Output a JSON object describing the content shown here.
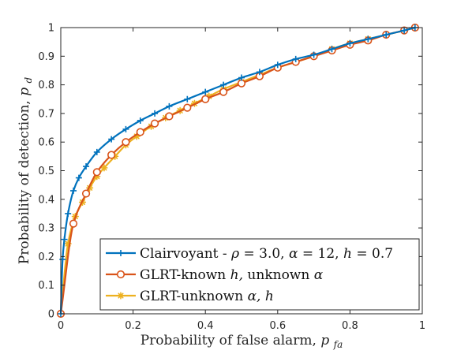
{
  "chart_data": {
    "type": "line",
    "xlabel": "Probability of false alarm, p_fa",
    "ylabel": "Probability of detection, p_d",
    "xlim": [
      0,
      1
    ],
    "ylim": [
      0,
      1
    ],
    "xticks": [
      0,
      0.2,
      0.4,
      0.6,
      0.8,
      1
    ],
    "yticks": [
      0,
      0.1,
      0.2,
      0.3,
      0.4,
      0.5,
      0.6,
      0.7,
      0.8,
      0.9,
      1
    ],
    "xtick_labels": [
      "0",
      "0.2",
      "0.4",
      "0.6",
      "0.8",
      "1"
    ],
    "ytick_labels": [
      "0",
      "0.1",
      "0.2",
      "0.3",
      "0.4",
      "0.5",
      "0.6",
      "0.7",
      "0.8",
      "0.9",
      "1"
    ],
    "grid": false,
    "legend_position": "bottom-right",
    "series": [
      {
        "name": "Clairvoyant - ρ = 3.0, α = 12, h = 0.7",
        "color": "#0072BD",
        "marker": "plus",
        "x": [
          0,
          0.005,
          0.01,
          0.02,
          0.035,
          0.05,
          0.07,
          0.1,
          0.14,
          0.18,
          0.22,
          0.26,
          0.3,
          0.35,
          0.4,
          0.45,
          0.5,
          0.55,
          0.6,
          0.65,
          0.7,
          0.75,
          0.8,
          0.85,
          0.9,
          0.95,
          0.98
        ],
        "y": [
          0,
          0.19,
          0.26,
          0.35,
          0.43,
          0.475,
          0.515,
          0.565,
          0.61,
          0.645,
          0.675,
          0.7,
          0.725,
          0.75,
          0.775,
          0.8,
          0.825,
          0.845,
          0.87,
          0.89,
          0.905,
          0.925,
          0.945,
          0.96,
          0.975,
          0.99,
          1
        ]
      },
      {
        "name": "GLRT-known h, unknown α",
        "color": "#D95319",
        "marker": "circle",
        "x": [
          0,
          0.035,
          0.07,
          0.1,
          0.14,
          0.18,
          0.22,
          0.26,
          0.3,
          0.35,
          0.4,
          0.45,
          0.5,
          0.55,
          0.6,
          0.65,
          0.7,
          0.75,
          0.8,
          0.85,
          0.9,
          0.95,
          0.98
        ],
        "y": [
          0,
          0.315,
          0.42,
          0.495,
          0.555,
          0.6,
          0.635,
          0.665,
          0.69,
          0.72,
          0.75,
          0.775,
          0.805,
          0.83,
          0.86,
          0.88,
          0.9,
          0.92,
          0.94,
          0.955,
          0.975,
          0.99,
          1
        ]
      },
      {
        "name": "GLRT-unknown α, h",
        "color": "#EDB120",
        "marker": "asterisk",
        "x": [
          0,
          0.02,
          0.04,
          0.06,
          0.08,
          0.1,
          0.12,
          0.15,
          0.18,
          0.21,
          0.25,
          0.29,
          0.33,
          0.37,
          0.41,
          0.45,
          0.5,
          0.55,
          0.6,
          0.65,
          0.7,
          0.75,
          0.8,
          0.85,
          0.9,
          0.95,
          0.98
        ],
        "y": [
          0,
          0.245,
          0.34,
          0.39,
          0.44,
          0.48,
          0.51,
          0.55,
          0.59,
          0.62,
          0.655,
          0.685,
          0.71,
          0.735,
          0.76,
          0.785,
          0.81,
          0.835,
          0.86,
          0.88,
          0.9,
          0.925,
          0.945,
          0.96,
          0.975,
          0.99,
          1
        ]
      }
    ]
  }
}
